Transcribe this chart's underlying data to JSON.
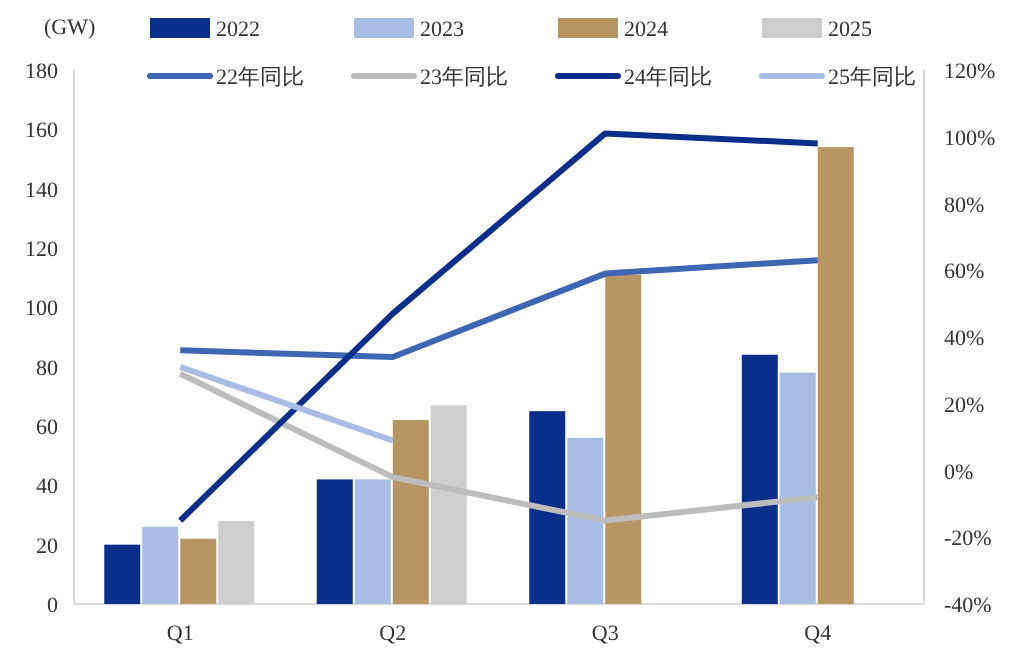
{
  "chart_data": {
    "type": "bar",
    "ylabel": "(GW)",
    "categories": [
      "Q1",
      "Q2",
      "Q3",
      "Q4"
    ],
    "series": [
      {
        "name": "2022",
        "color": "#0a2f8a",
        "values": [
          20,
          42,
          65,
          84
        ]
      },
      {
        "name": "2023",
        "color": "#a8bde3",
        "values": [
          26,
          42,
          56,
          78
        ]
      },
      {
        "name": "2024",
        "color": "#b89664",
        "values": [
          22,
          62,
          111,
          154
        ]
      },
      {
        "name": "2025",
        "color": "#d0cfd0",
        "values": [
          28,
          67,
          null,
          null
        ]
      },
      {
        "name": "22年同比",
        "type": "line",
        "axis": "y2",
        "color": "#3d66b3",
        "values": [
          36,
          34,
          59,
          63
        ]
      },
      {
        "name": "23年同比",
        "type": "line",
        "axis": "y2",
        "color": "#bdbdbd",
        "values": [
          29,
          -2,
          -15,
          -8
        ]
      },
      {
        "name": "24年同比",
        "type": "line",
        "axis": "y2",
        "color": "#0a2f8a",
        "values": [
          -15,
          47,
          101,
          98
        ]
      },
      {
        "name": "25年同比",
        "type": "line",
        "axis": "y2",
        "color": "#a8bde3",
        "values": [
          31,
          9,
          null,
          null
        ]
      }
    ],
    "ylim": [
      0,
      180
    ],
    "yticks": [
      0,
      20,
      40,
      60,
      80,
      100,
      120,
      140,
      160,
      180
    ],
    "y2lim": [
      -40,
      120
    ],
    "y2ticks": [
      {
        "value": -40,
        "label": "-40%"
      },
      {
        "value": -20,
        "label": "-20%"
      },
      {
        "value": 0,
        "label": "0%"
      },
      {
        "value": 20,
        "label": "20%"
      },
      {
        "value": 40,
        "label": "40%"
      },
      {
        "value": 60,
        "label": "60%"
      },
      {
        "value": 80,
        "label": "80%"
      },
      {
        "value": 100,
        "label": "100%"
      },
      {
        "value": 120,
        "label": "120%"
      }
    ],
    "legend": "top",
    "grid": false
  }
}
